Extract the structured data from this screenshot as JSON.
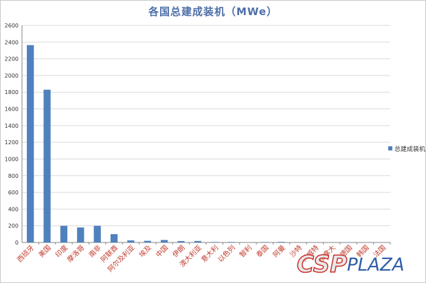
{
  "chart_data": {
    "type": "bar",
    "title": "各国总建成装机（MWe）",
    "categories": [
      "西班牙",
      "美国",
      "印度",
      "摩洛哥",
      "南非",
      "阿联酋",
      "阿尔及利亚",
      "埃及",
      "中国",
      "伊朗",
      "澳大利亚",
      "意大利",
      "以色列",
      "智利",
      "泰国",
      "阿曼",
      "沙特",
      "科威特",
      "加拿大",
      "德国",
      "韩国",
      "法国"
    ],
    "series": [
      {
        "name": "总建成装机",
        "values": [
          2364,
          1830,
          200,
          180,
          200,
          100,
          25,
          20,
          30,
          17,
          18,
          6,
          6,
          0,
          5,
          7,
          0,
          0,
          0,
          2,
          0,
          1
        ]
      }
    ],
    "ylim": [
      0,
      2600
    ],
    "yticks": [
      0,
      200,
      400,
      600,
      800,
      1000,
      1200,
      1400,
      1600,
      1800,
      2000,
      2200,
      2400,
      2600
    ],
    "grid": true,
    "legend_position": "right",
    "bar_color": "#4f81bd"
  },
  "watermark": {
    "logo_csp": "CSP",
    "logo_plaza": "PLAZA"
  }
}
